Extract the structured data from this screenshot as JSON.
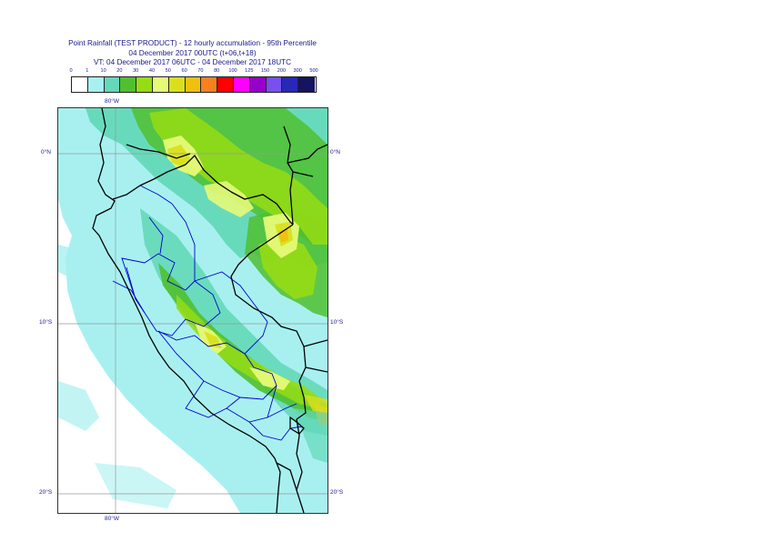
{
  "title": {
    "line1": "Point Rainfall (TEST PRODUCT) - 12 hourly accumulation - 95th Percentile",
    "line2": "04 December 2017 00UTC (t+06,t+18)",
    "line3": "VT: 04 December 2017 06UTC - 04 December 2017 18UTC"
  },
  "legend": {
    "labels": [
      "0",
      "1",
      "10",
      "20",
      "30",
      "40",
      "50",
      "60",
      "70",
      "80",
      "100",
      "125",
      "150",
      "200",
      "300",
      "500"
    ],
    "colors": [
      "#ffffff",
      "#a8f0f0",
      "#64d8b8",
      "#50c030",
      "#96dc14",
      "#e6fa78",
      "#d8e01e",
      "#f0c010",
      "#f88020",
      "#ff0000",
      "#ff00ff",
      "#9600c8",
      "#7850f0",
      "#2828b8",
      "#141460"
    ]
  },
  "map": {
    "lat_labels": {
      "n0_left": "0°N",
      "n0_right": "0°N",
      "s10_left": "10°S",
      "s10_right": "10°S",
      "s20_left": "20°S",
      "s20_right": "20°S"
    },
    "lon_labels": {
      "top": "80°W",
      "bottom": "80°W"
    },
    "colors": {
      "ocean": "#ffffff",
      "light": "#a8f0f0",
      "mid": "#64d8b8",
      "green": "#50c030",
      "lime": "#96dc14",
      "yellow": "#e6fa78",
      "gold": "#d8e01e",
      "orange": "#f0c010",
      "coast": "#000000",
      "border": "#0000cc",
      "grid": "#999999"
    }
  }
}
